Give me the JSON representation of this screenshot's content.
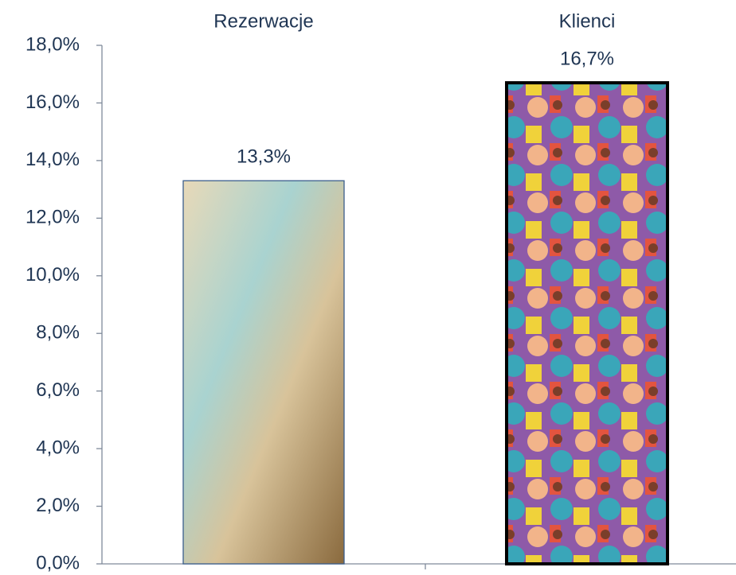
{
  "chart_data": {
    "type": "bar",
    "categories": [
      "Rezerwacje",
      "Klienci"
    ],
    "values": [
      13.3,
      16.7
    ],
    "value_labels": [
      "13,3%",
      "16,7%"
    ],
    "ylim": [
      0,
      18
    ],
    "yticks": [
      {
        "value": 0,
        "label": "0,0%"
      },
      {
        "value": 2,
        "label": "2,0%"
      },
      {
        "value": 4,
        "label": "4,0%"
      },
      {
        "value": 6,
        "label": "6,0%"
      },
      {
        "value": 8,
        "label": "8,0%"
      },
      {
        "value": 10,
        "label": "10,0%"
      },
      {
        "value": 12,
        "label": "12,0%"
      },
      {
        "value": 14,
        "label": "14,0%"
      },
      {
        "value": 16,
        "label": "16,0%"
      },
      {
        "value": 18,
        "label": "18,0%"
      }
    ],
    "grid": false
  }
}
